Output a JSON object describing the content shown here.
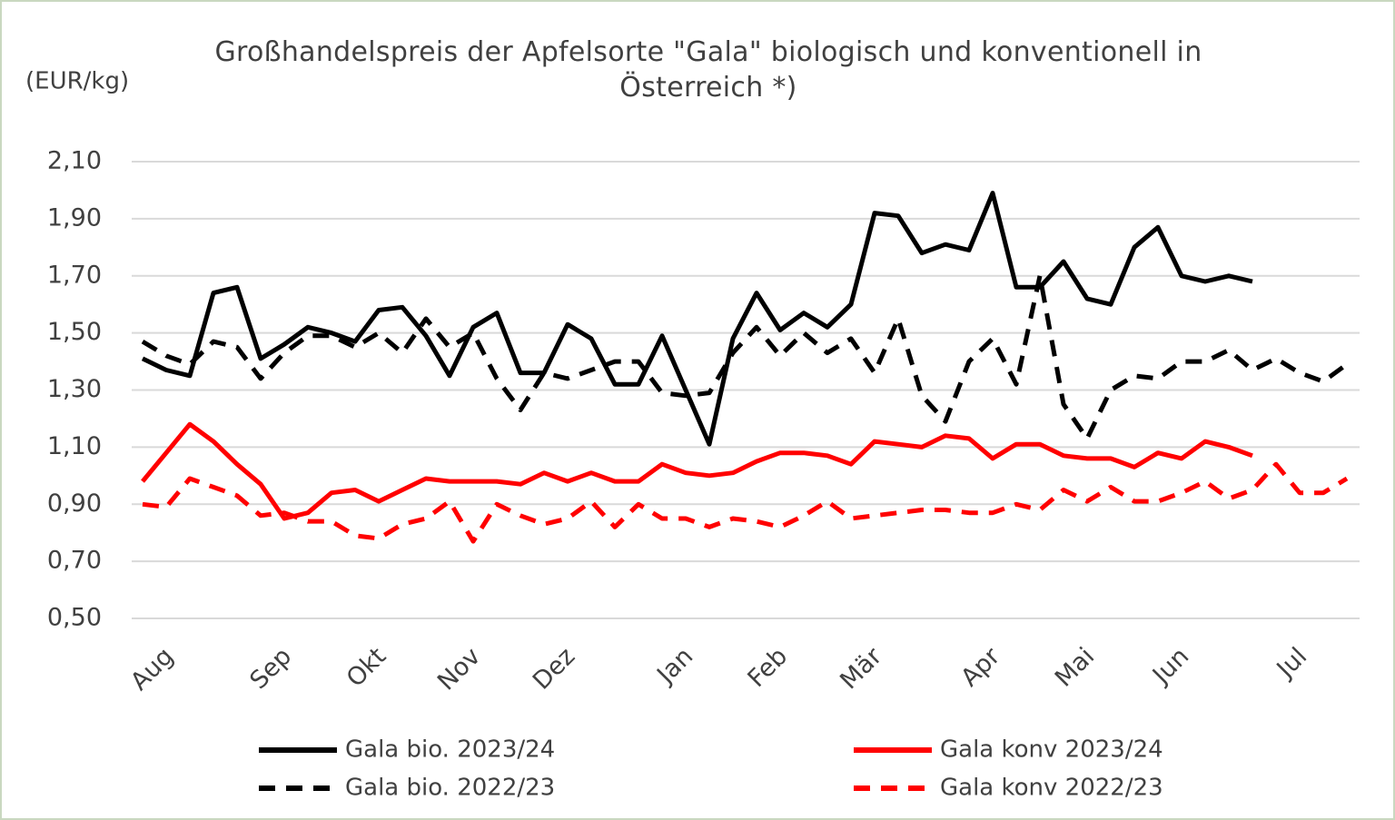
{
  "chart_data": {
    "type": "line",
    "title": "Großhandelspreis der Apfelsorte \"Gala\" biologisch und konventionell in\nÖsterreich *)",
    "y_label": "(EUR/kg)",
    "categories": [
      null,
      "Aug",
      null,
      null,
      null,
      null,
      "Sep",
      null,
      null,
      null,
      "Okt",
      null,
      null,
      null,
      "Nov",
      null,
      null,
      null,
      "Dez",
      null,
      null,
      null,
      null,
      "Jan",
      null,
      null,
      null,
      "Feb",
      null,
      null,
      null,
      "Mär",
      null,
      null,
      null,
      null,
      "Apr",
      null,
      null,
      null,
      "Mai",
      null,
      null,
      null,
      "Jun",
      null,
      null,
      null,
      null,
      "Jul",
      null,
      null
    ],
    "ylim": [
      0.5,
      2.1
    ],
    "yticks": [
      {
        "value": 0.5,
        "label": "0,50"
      },
      {
        "value": 0.7,
        "label": "0,70"
      },
      {
        "value": 0.9,
        "label": "0,90"
      },
      {
        "value": 1.1,
        "label": "1,10"
      },
      {
        "value": 1.3,
        "label": "1,30"
      },
      {
        "value": 1.5,
        "label": "1,50"
      },
      {
        "value": 1.7,
        "label": "1,70"
      },
      {
        "value": 1.9,
        "label": "1,90"
      },
      {
        "value": 2.1,
        "label": "2,10"
      }
    ],
    "grid": true,
    "legend": "bottom",
    "series": [
      {
        "name": "Gala bio. 2023/24",
        "color": "#000000",
        "linestyle": "solid",
        "values": [
          1.41,
          1.37,
          1.35,
          1.64,
          1.66,
          1.41,
          1.46,
          1.52,
          1.5,
          1.47,
          1.58,
          1.59,
          1.49,
          1.35,
          1.52,
          1.57,
          1.36,
          1.36,
          1.53,
          1.48,
          1.32,
          1.32,
          1.49,
          1.3,
          1.11,
          1.48,
          1.64,
          1.51,
          1.57,
          1.52,
          1.6,
          1.92,
          1.91,
          1.78,
          1.81,
          1.79,
          1.99,
          1.66,
          1.66,
          1.75,
          1.62,
          1.6,
          1.8,
          1.87,
          1.7,
          1.68,
          1.7,
          1.68,
          null,
          null,
          null,
          null
        ]
      },
      {
        "name": "Gala konv 2023/24",
        "color": "#ff0000",
        "linestyle": "solid",
        "values": [
          0.98,
          1.08,
          1.18,
          1.12,
          1.04,
          0.97,
          0.85,
          0.87,
          0.94,
          0.95,
          0.91,
          0.95,
          0.99,
          0.98,
          0.98,
          0.98,
          0.97,
          1.01,
          0.98,
          1.01,
          0.98,
          0.98,
          1.04,
          1.01,
          1.0,
          1.01,
          1.05,
          1.08,
          1.08,
          1.07,
          1.04,
          1.12,
          1.11,
          1.1,
          1.14,
          1.13,
          1.06,
          1.11,
          1.11,
          1.07,
          1.06,
          1.06,
          1.03,
          1.08,
          1.06,
          1.12,
          1.1,
          1.07,
          null,
          null,
          null,
          null
        ]
      },
      {
        "name": "Gala bio. 2022/23",
        "color": "#000000",
        "linestyle": "dashed",
        "values": [
          1.47,
          1.42,
          1.39,
          1.47,
          1.45,
          1.34,
          1.43,
          1.49,
          1.49,
          1.45,
          1.5,
          1.43,
          1.55,
          1.45,
          1.5,
          1.34,
          1.23,
          1.36,
          1.34,
          1.37,
          1.4,
          1.4,
          1.29,
          1.28,
          1.29,
          1.43,
          1.52,
          1.42,
          1.5,
          1.43,
          1.48,
          1.36,
          1.55,
          1.28,
          1.19,
          1.4,
          1.48,
          1.32,
          1.7,
          1.25,
          1.13,
          1.3,
          1.35,
          1.34,
          1.4,
          1.4,
          1.44,
          1.37,
          1.41,
          1.36,
          1.33,
          1.39
        ]
      },
      {
        "name": "Gala konv 2022/23",
        "color": "#ff0000",
        "linestyle": "dashed",
        "values": [
          0.9,
          0.89,
          0.99,
          0.96,
          0.93,
          0.86,
          0.87,
          0.84,
          0.84,
          0.79,
          0.78,
          0.83,
          0.85,
          0.91,
          0.77,
          0.9,
          0.86,
          0.83,
          0.85,
          0.91,
          0.82,
          0.9,
          0.85,
          0.85,
          0.82,
          0.85,
          0.84,
          0.82,
          0.86,
          0.91,
          0.85,
          0.86,
          0.87,
          0.88,
          0.88,
          0.87,
          0.87,
          0.9,
          0.88,
          0.95,
          0.91,
          0.96,
          0.91,
          0.91,
          0.94,
          0.98,
          0.92,
          0.95,
          1.04,
          0.94,
          0.94,
          0.99
        ]
      }
    ]
  }
}
